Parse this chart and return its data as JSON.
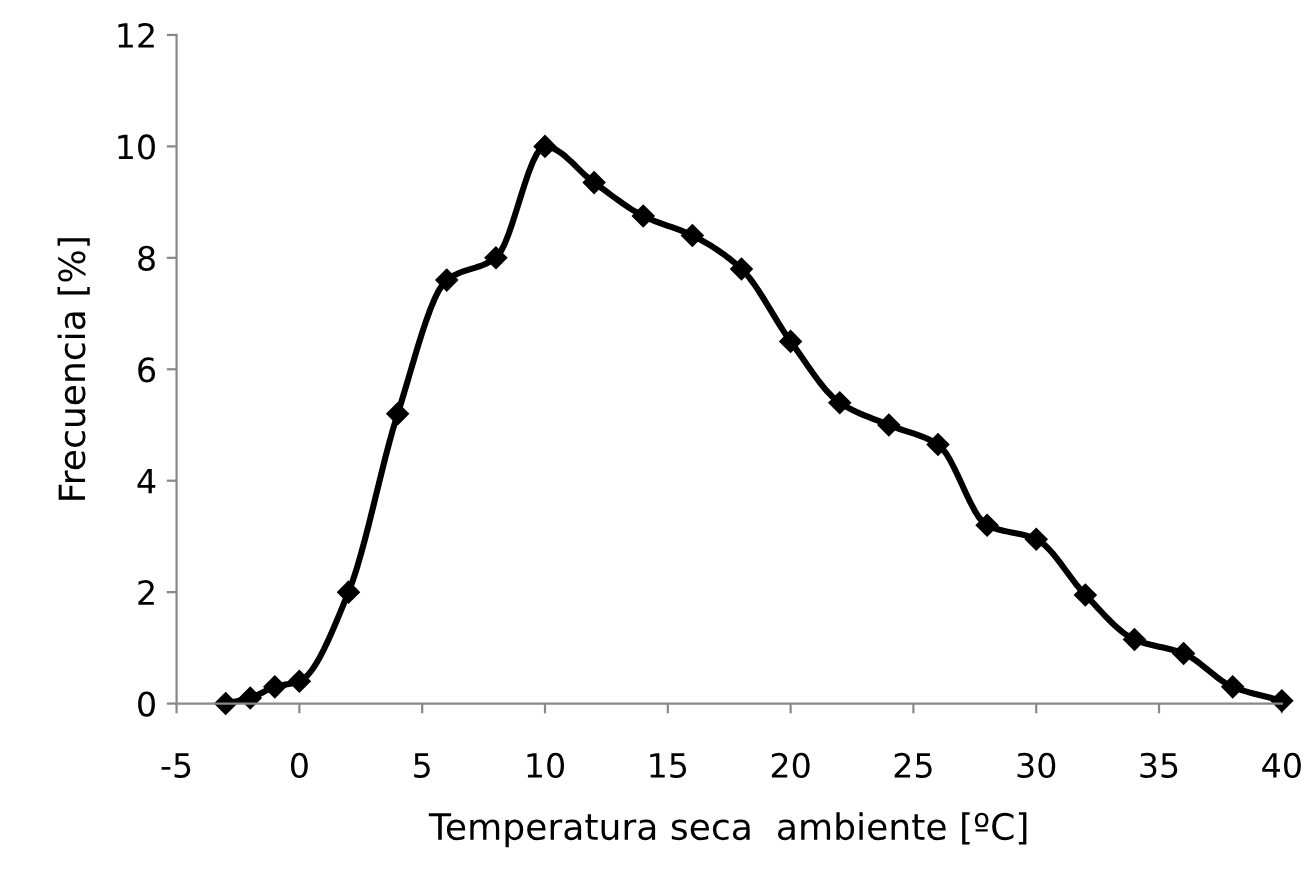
{
  "chart_data": {
    "type": "line",
    "xlabel": "Temperatura seca  ambiente [ºC]",
    "ylabel": "Frecuencia [%]",
    "x": [
      -3,
      -2,
      -1,
      0,
      2,
      4,
      6,
      8,
      10,
      12,
      14,
      16,
      18,
      20,
      22,
      24,
      26,
      28,
      30,
      32,
      34,
      36,
      38,
      40
    ],
    "series": [
      {
        "color": "#000000",
        "values": [
          0,
          0.1,
          0.3,
          0.4,
          2.0,
          5.2,
          7.6,
          8.0,
          10.0,
          9.35,
          8.75,
          8.4,
          7.8,
          6.5,
          5.4,
          5.0,
          4.65,
          3.2,
          2.95,
          1.95,
          1.15,
          0.9,
          0.3,
          0.05
        ]
      }
    ],
    "xlim": [
      -5,
      40
    ],
    "xticks": [
      -5,
      0,
      5,
      10,
      15,
      20,
      25,
      30,
      35,
      40
    ],
    "ylim": [
      0,
      12
    ],
    "yticks": [
      0,
      2,
      4,
      6,
      8,
      10,
      12
    ],
    "marker": "diamond",
    "line_style": "solid",
    "grid": false,
    "legend": false
  }
}
